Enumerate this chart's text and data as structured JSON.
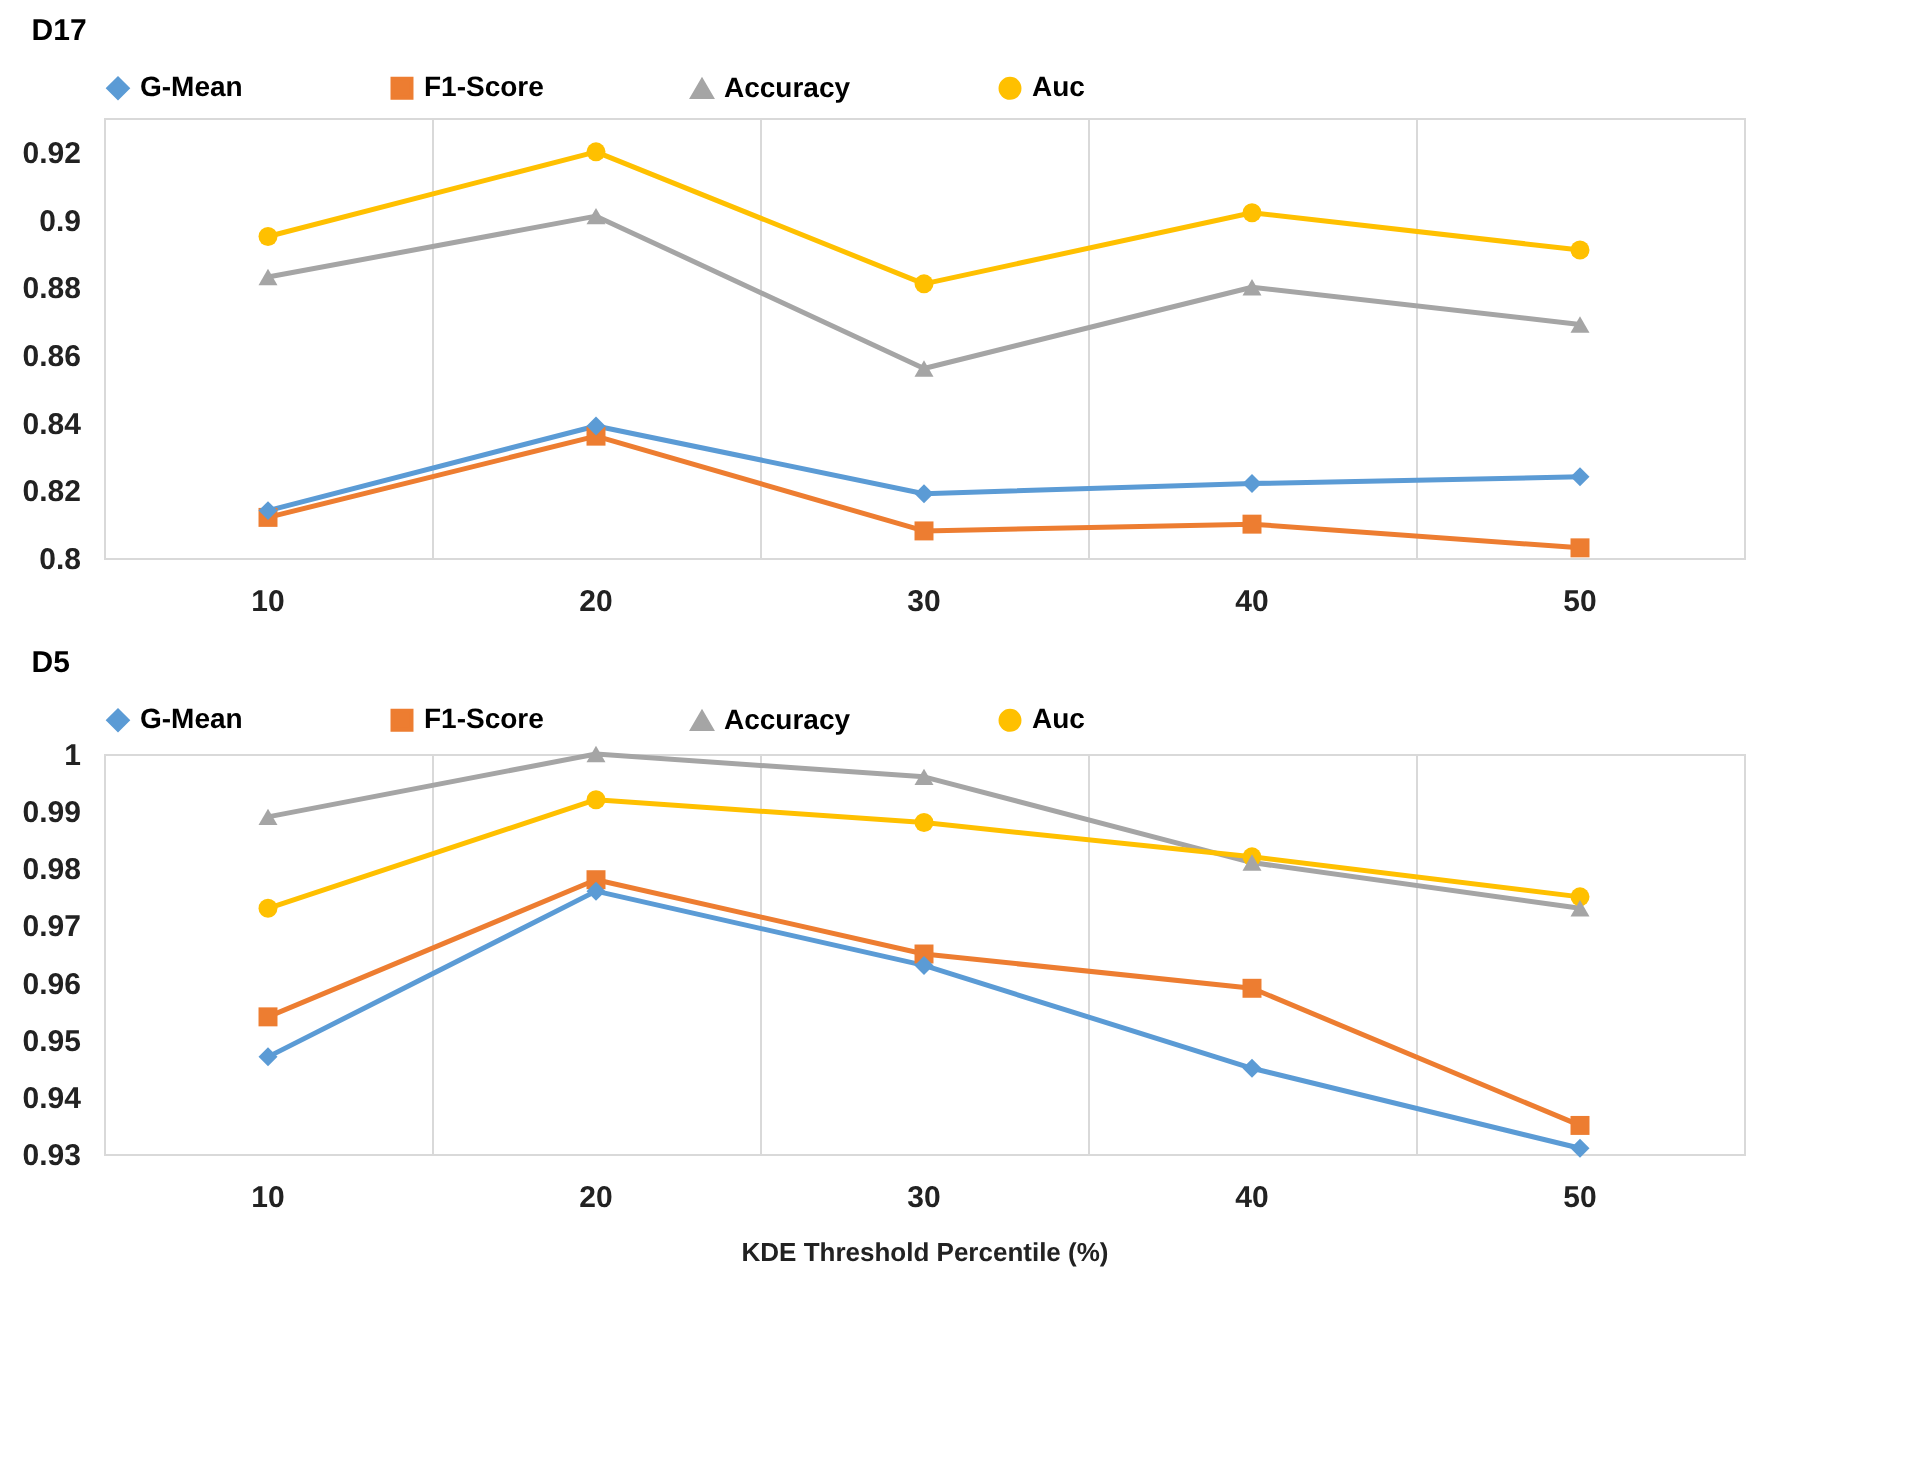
{
  "chart_data": [
    {
      "type": "line",
      "title": "D17",
      "categories": [
        "10",
        "20",
        "30",
        "40",
        "50"
      ],
      "ylim": [
        0.8,
        0.93
      ],
      "yticks": [
        0.8,
        0.82,
        0.84,
        0.86,
        0.88,
        0.9,
        0.92
      ],
      "grid": "x",
      "legend": "top",
      "series": [
        {
          "name": "G-Mean",
          "color": "#5b9bd5",
          "marker": "diamond",
          "values": [
            0.814,
            0.839,
            0.819,
            0.822,
            0.824
          ]
        },
        {
          "name": "F1-Score",
          "color": "#ed7d31",
          "marker": "square",
          "values": [
            0.812,
            0.836,
            0.808,
            0.81,
            0.803
          ]
        },
        {
          "name": "Accuracy",
          "color": "#a5a5a5",
          "marker": "triangle",
          "values": [
            0.883,
            0.901,
            0.856,
            0.88,
            0.869
          ]
        },
        {
          "name": "Auc",
          "color": "#ffc000",
          "marker": "circle",
          "values": [
            0.895,
            0.92,
            0.881,
            0.902,
            0.891
          ]
        }
      ]
    },
    {
      "type": "line",
      "title": "D5",
      "xlabel": "KDE Threshold Percentile (%)",
      "categories": [
        "10",
        "20",
        "30",
        "40",
        "50"
      ],
      "ylim": [
        0.93,
        1
      ],
      "yticks": [
        0.93,
        0.94,
        0.95,
        0.96,
        0.97,
        0.98,
        0.99,
        1
      ],
      "grid": "x",
      "legend": "top",
      "series": [
        {
          "name": "G-Mean",
          "color": "#5b9bd5",
          "marker": "diamond",
          "values": [
            0.947,
            0.976,
            0.963,
            0.945,
            0.931
          ]
        },
        {
          "name": "F1-Score",
          "color": "#ed7d31",
          "marker": "square",
          "values": [
            0.954,
            0.978,
            0.965,
            0.959,
            0.935
          ]
        },
        {
          "name": "Accuracy",
          "color": "#a5a5a5",
          "marker": "triangle",
          "values": [
            0.989,
            1.0,
            0.996,
            0.981,
            0.973
          ]
        },
        {
          "name": "Auc",
          "color": "#ffc000",
          "marker": "circle",
          "values": [
            0.973,
            0.992,
            0.988,
            0.982,
            0.975
          ]
        }
      ]
    }
  ]
}
